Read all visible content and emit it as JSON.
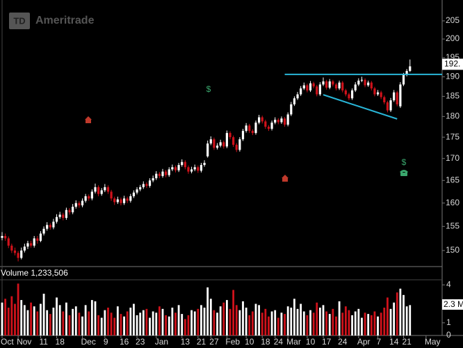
{
  "chart_data": {
    "type": "candlestick",
    "logo_badge": "TD",
    "logo": "Ameritrade",
    "volume_title": "Volume 1,233,506",
    "price_tag": "192.",
    "volume_tag": "2.3 M",
    "event_labels": [
      "$",
      "$"
    ],
    "log_scale": true,
    "up_color": "#ffffff",
    "down_color": "#d0121b",
    "ylim": [
      146.9,
      210.9
    ],
    "yticks": [
      150,
      155,
      160,
      165,
      170,
      175,
      180,
      185,
      190,
      195,
      200,
      205
    ],
    "volume_ylim": [
      0,
      4.4
    ],
    "volume_yticks": [
      0,
      1,
      4
    ],
    "categories": [
      "Oct",
      null,
      null,
      null,
      null,
      "Nov",
      null,
      null,
      null,
      null,
      null,
      null,
      "11",
      null,
      null,
      null,
      null,
      "18",
      null,
      null,
      null,
      null,
      null,
      null,
      null,
      "Dec",
      null,
      null,
      null,
      null,
      null,
      null,
      "9",
      null,
      null,
      null,
      null,
      "16",
      null,
      null,
      null,
      null,
      "23",
      null,
      null,
      null,
      null,
      null,
      "Jan",
      null,
      null,
      null,
      null,
      null,
      null,
      null,
      "13",
      null,
      null,
      null,
      null,
      "21",
      null,
      null,
      null,
      "27",
      null,
      null,
      null,
      null,
      "Feb",
      null,
      null,
      null,
      null,
      null,
      "10",
      null,
      null,
      null,
      null,
      "18",
      null,
      null,
      null,
      "24",
      null,
      null,
      null,
      "Mar",
      null,
      null,
      null,
      null,
      null,
      "10",
      null,
      null,
      null,
      null,
      "17",
      null,
      null,
      null,
      null,
      "24",
      null,
      null,
      null,
      null,
      null,
      "Apr",
      null,
      null,
      null,
      null,
      null,
      "7",
      null,
      null,
      null,
      "14",
      null,
      null,
      null,
      "21",
      null,
      null,
      null,
      null,
      null,
      null,
      "May",
      null,
      null,
      null
    ],
    "ohlc": [
      [
        152.6,
        153.8,
        152.1,
        153
      ],
      [
        153,
        153.5,
        152,
        152.5
      ],
      [
        152.5,
        152.9,
        150.5,
        151
      ],
      [
        151,
        151.4,
        149.5,
        150
      ],
      [
        150,
        150.6,
        149,
        149.5
      ],
      [
        149.5,
        149.9,
        147.8,
        148.5
      ],
      [
        148.5,
        150.6,
        148.2,
        150
      ],
      [
        150,
        151.4,
        149.6,
        150.8
      ],
      [
        150.8,
        152,
        150.3,
        151.5
      ],
      [
        151.5,
        152,
        150.6,
        151
      ],
      [
        151,
        153,
        150.6,
        152.5
      ],
      [
        152.5,
        153,
        151.4,
        152
      ],
      [
        152,
        154,
        151.7,
        153.5
      ],
      [
        153.5,
        155,
        153.1,
        154.5
      ],
      [
        154.5,
        155.9,
        154.1,
        155.3
      ],
      [
        155.3,
        155.7,
        154.3,
        154.8
      ],
      [
        154.8,
        156.6,
        154.4,
        156
      ],
      [
        156,
        157.6,
        155.6,
        157
      ],
      [
        157,
        158.1,
        156.6,
        157.5
      ],
      [
        157.5,
        157.9,
        156.3,
        156.8
      ],
      [
        156.8,
        159,
        156.4,
        158.5
      ],
      [
        158.5,
        158.9,
        157.5,
        158
      ],
      [
        158,
        159.8,
        157.6,
        159.2
      ],
      [
        159.2,
        160.6,
        158.8,
        160
      ],
      [
        160,
        160.4,
        159,
        159.5
      ],
      [
        159.5,
        161,
        159.1,
        160.5
      ],
      [
        160.5,
        162,
        160.1,
        161.5
      ],
      [
        161.5,
        161.9,
        160.5,
        161
      ],
      [
        161,
        163,
        160.6,
        162.5
      ],
      [
        162.5,
        164.3,
        162.1,
        163.5
      ],
      [
        163.5,
        163.9,
        161.5,
        162
      ],
      [
        162,
        163.3,
        161.6,
        162.8
      ],
      [
        162.8,
        164.2,
        162.4,
        163.5
      ],
      [
        163.5,
        163.9,
        162,
        162.5
      ],
      [
        162.5,
        162.9,
        160.5,
        161
      ],
      [
        161,
        161.4,
        159.6,
        160.2
      ],
      [
        160.2,
        161.4,
        159.8,
        160.8
      ],
      [
        160.8,
        161.2,
        159.5,
        160
      ],
      [
        160,
        161.6,
        159.6,
        161
      ],
      [
        161,
        161.4,
        160,
        160.5
      ],
      [
        160.5,
        162,
        160.1,
        161.5
      ],
      [
        161.5,
        162.8,
        161.1,
        162.3
      ],
      [
        162.3,
        163.5,
        161.9,
        163
      ],
      [
        163,
        164,
        162.6,
        163.5
      ],
      [
        163.5,
        164.8,
        163.1,
        164.2
      ],
      [
        164.2,
        164.6,
        163.3,
        163.8
      ],
      [
        163.8,
        165.5,
        163.4,
        165
      ],
      [
        165,
        166.1,
        164.6,
        165.5
      ],
      [
        165.5,
        167.1,
        165.1,
        166.5
      ],
      [
        166.5,
        166.9,
        165.5,
        166
      ],
      [
        166,
        167.6,
        165.6,
        167
      ],
      [
        167,
        167.4,
        165.7,
        166.2
      ],
      [
        166.2,
        168,
        165.8,
        167.5
      ],
      [
        167.5,
        168.6,
        167.1,
        168
      ],
      [
        168,
        168.4,
        166.8,
        167.3
      ],
      [
        167.3,
        169,
        166.9,
        168.5
      ],
      [
        168.5,
        169.8,
        168.1,
        169.2
      ],
      [
        169.2,
        169.6,
        167.5,
        168
      ],
      [
        168,
        168.4,
        166.5,
        167
      ],
      [
        167,
        168.1,
        166.6,
        167.5
      ],
      [
        167.5,
        168.6,
        167.1,
        168
      ],
      [
        168,
        168.4,
        166.7,
        167.2
      ],
      [
        167.2,
        169,
        166.8,
        168.5
      ],
      [
        168.5,
        169.6,
        168.1,
        169
      ],
      [
        170.5,
        174.2,
        170.2,
        173.5
      ],
      [
        173.5,
        175.2,
        173.1,
        174.5
      ],
      [
        174.5,
        174.9,
        172,
        172.5
      ],
      [
        172.5,
        173.6,
        172.1,
        173
      ],
      [
        173,
        174.4,
        172.6,
        173.8
      ],
      [
        173.8,
        174.2,
        172.3,
        172.8
      ],
      [
        172.8,
        176.6,
        172.4,
        176
      ],
      [
        176,
        176.4,
        174.5,
        175
      ],
      [
        175,
        175.4,
        172.7,
        173.2
      ],
      [
        173.2,
        173.6,
        171.5,
        172
      ],
      [
        172,
        175,
        171.6,
        174.5
      ],
      [
        174.5,
        177,
        174.1,
        176.5
      ],
      [
        176.5,
        178.4,
        176.1,
        177.8
      ],
      [
        177.8,
        178.2,
        176,
        176.5
      ],
      [
        176.5,
        176.9,
        175.5,
        176
      ],
      [
        176,
        179,
        175.6,
        178.5
      ],
      [
        178.5,
        180.4,
        178.1,
        179.8
      ],
      [
        179.8,
        180.2,
        178.3,
        178.8
      ],
      [
        178.8,
        179.2,
        177,
        177.5
      ],
      [
        177.5,
        177.9,
        176.5,
        177
      ],
      [
        177,
        179,
        176.6,
        178.5
      ],
      [
        178.5,
        179.8,
        178.1,
        179.2
      ],
      [
        179.2,
        179.6,
        178.1,
        178.6
      ],
      [
        178.6,
        180,
        178.2,
        179.5
      ],
      [
        179.5,
        179.9,
        177.5,
        178
      ],
      [
        178,
        181,
        177.6,
        180.5
      ],
      [
        180.5,
        183.6,
        180.1,
        183
      ],
      [
        183,
        185,
        182.6,
        184.5
      ],
      [
        184.5,
        186.1,
        184.1,
        185.5
      ],
      [
        185.5,
        187.6,
        185.1,
        187
      ],
      [
        187,
        188.5,
        186.6,
        187.8
      ],
      [
        187.8,
        188.2,
        186,
        186.5
      ],
      [
        186.5,
        188.9,
        186.1,
        188.3
      ],
      [
        188.3,
        188.7,
        187,
        187.5
      ],
      [
        187.5,
        187.9,
        185,
        185.5
      ],
      [
        185.5,
        188.6,
        185.1,
        188
      ],
      [
        188,
        189.8,
        187.6,
        188.8
      ],
      [
        188.8,
        189.2,
        186.7,
        187.2
      ],
      [
        187.2,
        189.4,
        186.8,
        188.8
      ],
      [
        188.8,
        189.2,
        187.5,
        188
      ],
      [
        188,
        188.4,
        186.5,
        187
      ],
      [
        187,
        189,
        186.6,
        188.5
      ],
      [
        188.5,
        188.9,
        186,
        186.5
      ],
      [
        186.5,
        186.9,
        185,
        185.5
      ],
      [
        185.5,
        185.9,
        184,
        184.5
      ],
      [
        184.5,
        187,
        184.1,
        186.5
      ],
      [
        186.5,
        188.6,
        186.1,
        188
      ],
      [
        188,
        189.6,
        187.6,
        189
      ],
      [
        189,
        190,
        188.6,
        189.2
      ],
      [
        189.2,
        189.6,
        187.3,
        187.8
      ],
      [
        187.8,
        189,
        187.4,
        188.5
      ],
      [
        188.5,
        188.9,
        186.5,
        187
      ],
      [
        187,
        187.4,
        185,
        185.5
      ],
      [
        185.5,
        186.6,
        185.1,
        186
      ],
      [
        186,
        186.4,
        184.3,
        184.8
      ],
      [
        184.8,
        185.2,
        183,
        183.5
      ],
      [
        183.5,
        183.9,
        181,
        181.5
      ],
      [
        181.5,
        184.6,
        181.1,
        184
      ],
      [
        184,
        186.6,
        183.6,
        186
      ],
      [
        186,
        186.4,
        182.5,
        183
      ],
      [
        182.5,
        188.6,
        182.1,
        188
      ],
      [
        188,
        191,
        187.6,
        190.5
      ],
      [
        190.5,
        192,
        190.1,
        191.5
      ],
      [
        191.5,
        194.5,
        191.2,
        192.7
      ],
      null,
      null,
      null,
      null,
      null,
      null,
      null,
      null
    ],
    "volume": [
      2.6,
      2.9,
      2.2,
      3.1,
      2.5,
      4.1,
      2.8,
      2.4,
      2.0,
      2.6,
      2.3,
      1.9,
      2.5,
      3.3,
      2.0,
      1.7,
      2.2,
      3.0,
      2.4,
      1.9,
      2.6,
      1.6,
      2.1,
      2.3,
      1.8,
      1.5,
      2.4,
      1.9,
      2.8,
      2.7,
      1.6,
      1.4,
      2.0,
      2.2,
      1.8,
      1.4,
      2.3,
      1.7,
      1.5,
      1.9,
      2.2,
      2.5,
      1.6,
      1.8,
      2.0,
      2.1,
      1.4,
      1.9,
      1.8,
      2.3,
      2.1,
      1.6,
      1.5,
      2.2,
      1.8,
      2.4,
      1.7,
      1.3,
      1.6,
      2.0,
      1.9,
      2.1,
      2.4,
      2.2,
      3.8,
      2.9,
      2.0,
      1.8,
      2.3,
      2.6,
      2.8,
      2.1,
      3.6,
      2.4,
      2.0,
      2.7,
      2.2,
      1.6,
      1.9,
      2.5,
      2.4,
      1.8,
      2.1,
      1.5,
      1.9,
      2.0,
      1.4,
      1.8,
      1.7,
      2.3,
      2.2,
      2.9,
      2.1,
      2.5,
      1.9,
      1.6,
      2.0,
      1.8,
      2.6,
      2.2,
      2.4,
      1.9,
      1.7,
      2.1,
      1.5,
      2.7,
      1.8,
      2.3,
      2.0,
      1.6,
      1.9,
      2.1,
      1.4,
      1.8,
      1.7,
      1.6,
      1.9,
      1.5,
      1.8,
      2.2,
      3.0,
      2.1,
      2.6,
      3.4,
      3.7,
      3.2,
      2.3,
      2.4,
      null,
      null,
      null,
      null,
      null,
      null,
      null,
      null
    ],
    "trendlines": [
      {
        "color": "#29b6d8",
        "x": [
          88,
          137
        ],
        "y": [
          190.6,
          190.6
        ]
      },
      {
        "color": "#29b6d8",
        "x": [
          100,
          123
        ],
        "y": [
          185.4,
          179.4
        ]
      }
    ]
  }
}
